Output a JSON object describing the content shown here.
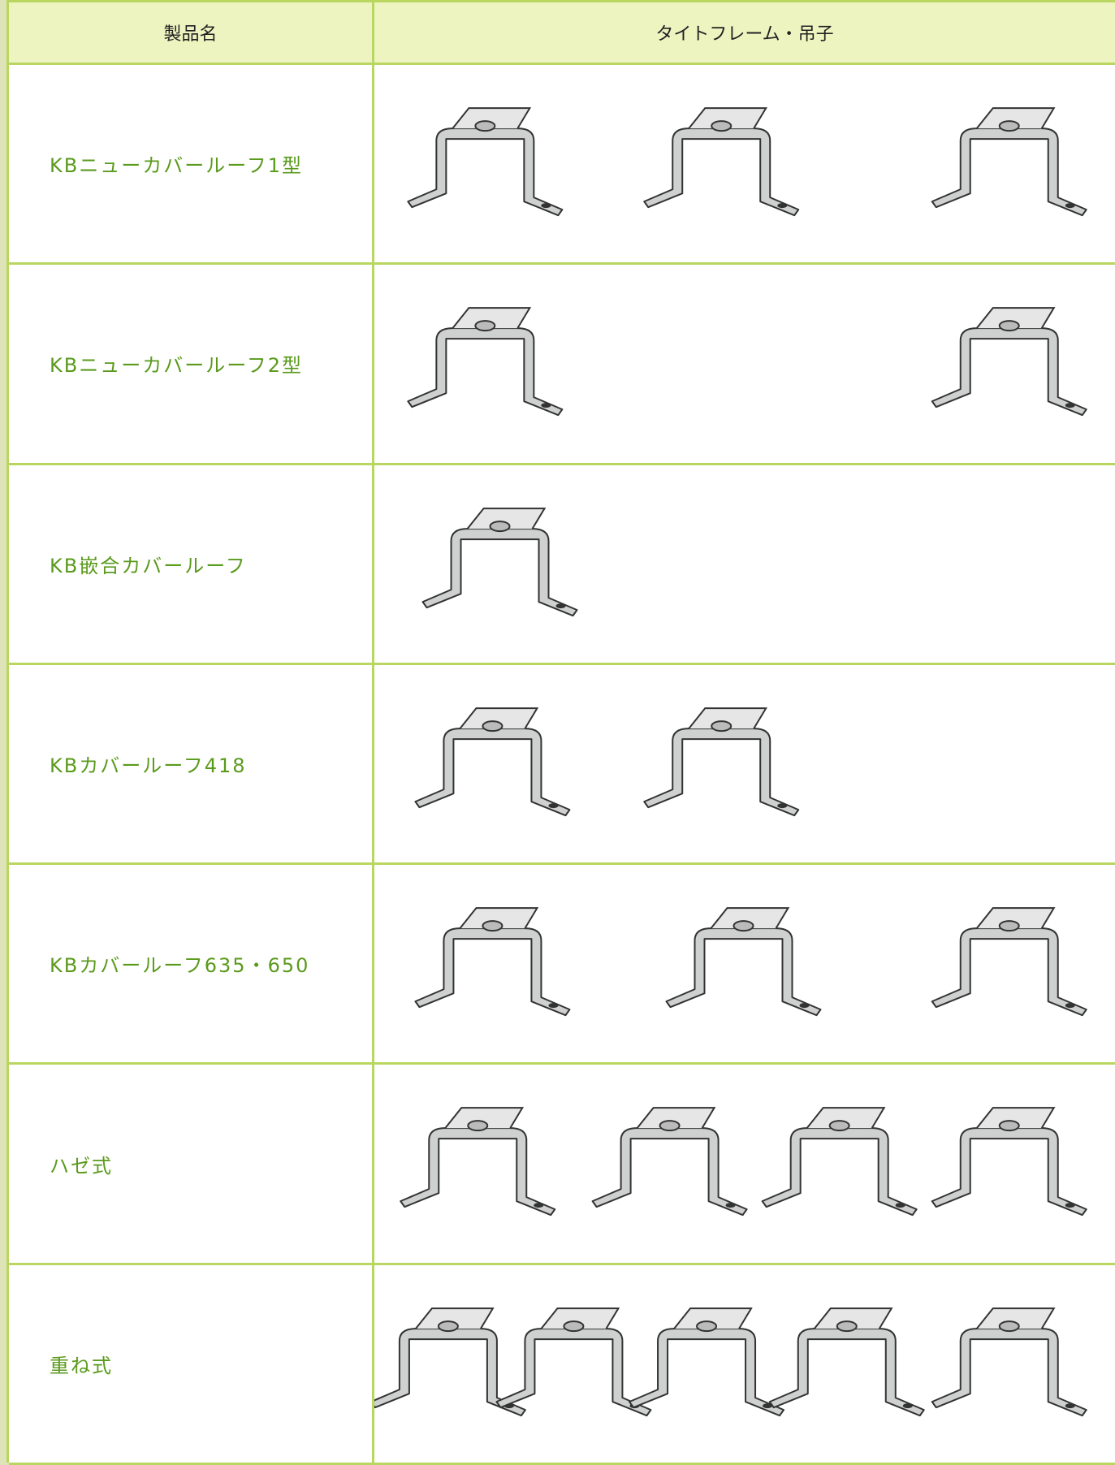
{
  "header": {
    "columns": [
      "製品名",
      "タイトフレーム・吊子"
    ]
  },
  "rows": [
    {
      "name": "KBニューカバールーフ1型"
    },
    {
      "name": "KBニューカバールーフ2型"
    },
    {
      "name": "KB嵌合カバールーフ"
    },
    {
      "name": "KBカバールーフ418"
    },
    {
      "name": "KBカバールーフ635・650"
    },
    {
      "name": "ハゼ式"
    },
    {
      "name": "重ね式"
    }
  ]
}
